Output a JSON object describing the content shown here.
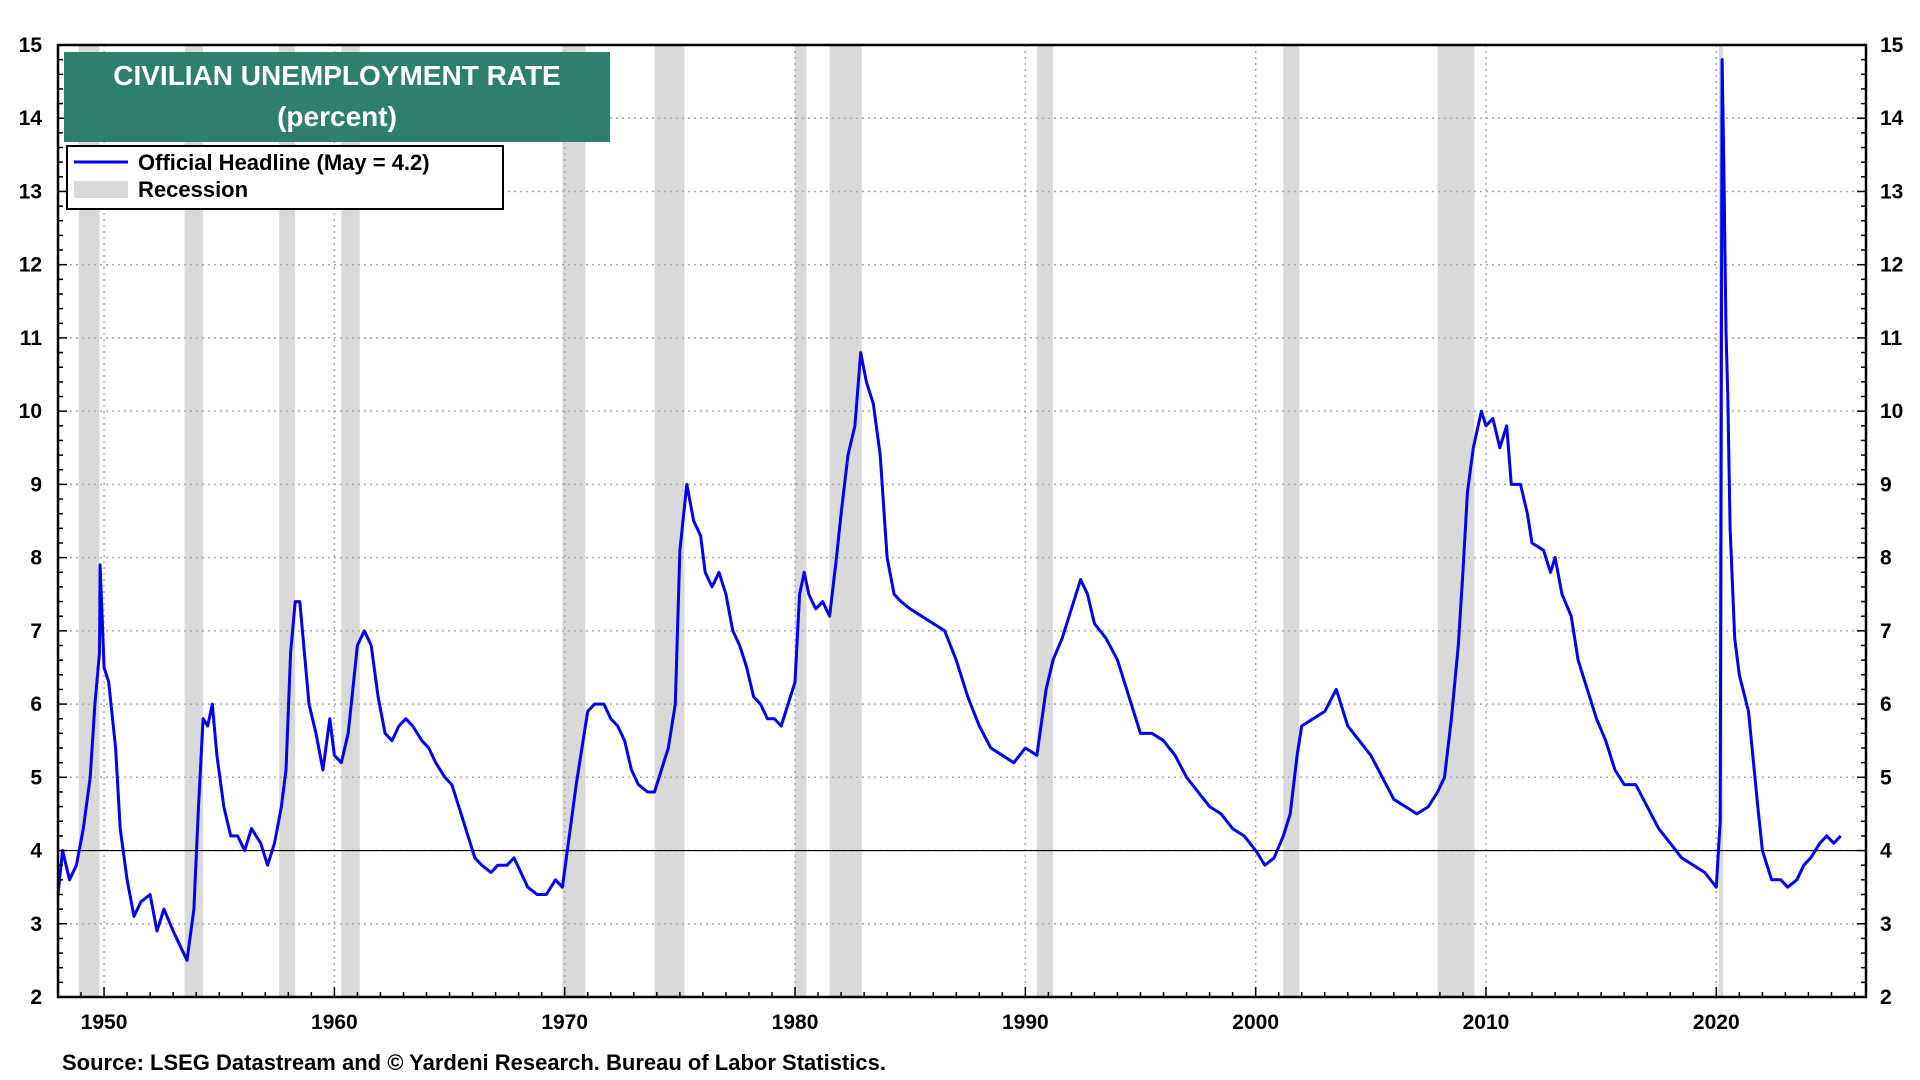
{
  "chart_data": {
    "type": "line",
    "title": "CIVILIAN UNEMPLOYMENT RATE",
    "subtitle": "(percent)",
    "source": "Source: LSEG Datastream and © Yardeni Research. Bureau of Labor Statistics.",
    "xlim": [
      1948.0,
      2026.5
    ],
    "ylim": [
      2,
      15
    ],
    "x_ticks": [
      1950,
      1960,
      1970,
      1980,
      1990,
      2000,
      2010,
      2020
    ],
    "y_ticks": [
      2,
      3,
      4,
      5,
      6,
      7,
      8,
      9,
      10,
      11,
      12,
      13,
      14,
      15
    ],
    "reference_line": 4,
    "grid": true,
    "legend_position": "top-left",
    "legend": [
      {
        "label": "Official Headline (May = 4.2)",
        "kind": "line",
        "color": "#0000ee"
      },
      {
        "label": "Recession",
        "kind": "band",
        "color": "#d9d9d9"
      }
    ],
    "recessions": [
      [
        1948.9,
        1949.8
      ],
      [
        1953.5,
        1954.3
      ],
      [
        1957.6,
        1958.3
      ],
      [
        1960.3,
        1961.1
      ],
      [
        1969.9,
        1970.9
      ],
      [
        1973.9,
        1975.2
      ],
      [
        1980.0,
        1980.5
      ],
      [
        1981.5,
        1982.9
      ],
      [
        1990.5,
        1991.2
      ],
      [
        2001.2,
        2001.9
      ],
      [
        2007.9,
        2009.5
      ],
      [
        2020.1,
        2020.3
      ]
    ],
    "series": [
      {
        "name": "Official Headline (May = 4.2)",
        "color": "#0000ee",
        "points": [
          [
            1948.0,
            3.4
          ],
          [
            1948.2,
            4.0
          ],
          [
            1948.5,
            3.6
          ],
          [
            1948.8,
            3.8
          ],
          [
            1949.1,
            4.3
          ],
          [
            1949.4,
            5.0
          ],
          [
            1949.6,
            6.0
          ],
          [
            1949.8,
            6.7
          ],
          [
            1949.83,
            7.9
          ],
          [
            1950.0,
            6.5
          ],
          [
            1950.2,
            6.3
          ],
          [
            1950.5,
            5.4
          ],
          [
            1950.7,
            4.3
          ],
          [
            1951.0,
            3.6
          ],
          [
            1951.3,
            3.1
          ],
          [
            1951.6,
            3.3
          ],
          [
            1952.0,
            3.4
          ],
          [
            1952.3,
            2.9
          ],
          [
            1952.6,
            3.2
          ],
          [
            1953.0,
            2.9
          ],
          [
            1953.3,
            2.7
          ],
          [
            1953.6,
            2.5
          ],
          [
            1953.9,
            3.2
          ],
          [
            1954.1,
            4.6
          ],
          [
            1954.3,
            5.8
          ],
          [
            1954.5,
            5.7
          ],
          [
            1954.7,
            6.0
          ],
          [
            1954.9,
            5.3
          ],
          [
            1955.2,
            4.6
          ],
          [
            1955.5,
            4.2
          ],
          [
            1955.8,
            4.2
          ],
          [
            1956.1,
            4.0
          ],
          [
            1956.4,
            4.3
          ],
          [
            1956.8,
            4.1
          ],
          [
            1957.1,
            3.8
          ],
          [
            1957.4,
            4.1
          ],
          [
            1957.7,
            4.6
          ],
          [
            1957.9,
            5.1
          ],
          [
            1958.1,
            6.7
          ],
          [
            1958.3,
            7.4
          ],
          [
            1958.5,
            7.4
          ],
          [
            1958.7,
            6.7
          ],
          [
            1958.9,
            6.0
          ],
          [
            1959.2,
            5.6
          ],
          [
            1959.5,
            5.1
          ],
          [
            1959.8,
            5.8
          ],
          [
            1960.0,
            5.3
          ],
          [
            1960.3,
            5.2
          ],
          [
            1960.6,
            5.6
          ],
          [
            1960.8,
            6.2
          ],
          [
            1961.0,
            6.8
          ],
          [
            1961.3,
            7.0
          ],
          [
            1961.6,
            6.8
          ],
          [
            1961.9,
            6.1
          ],
          [
            1962.2,
            5.6
          ],
          [
            1962.5,
            5.5
          ],
          [
            1962.8,
            5.7
          ],
          [
            1963.1,
            5.8
          ],
          [
            1963.4,
            5.7
          ],
          [
            1963.8,
            5.5
          ],
          [
            1964.1,
            5.4
          ],
          [
            1964.4,
            5.2
          ],
          [
            1964.8,
            5.0
          ],
          [
            1965.1,
            4.9
          ],
          [
            1965.4,
            4.6
          ],
          [
            1965.8,
            4.2
          ],
          [
            1966.1,
            3.9
          ],
          [
            1966.4,
            3.8
          ],
          [
            1966.8,
            3.7
          ],
          [
            1967.1,
            3.8
          ],
          [
            1967.5,
            3.8
          ],
          [
            1967.8,
            3.9
          ],
          [
            1968.1,
            3.7
          ],
          [
            1968.4,
            3.5
          ],
          [
            1968.8,
            3.4
          ],
          [
            1969.2,
            3.4
          ],
          [
            1969.6,
            3.6
          ],
          [
            1969.9,
            3.5
          ],
          [
            1970.2,
            4.2
          ],
          [
            1970.5,
            4.9
          ],
          [
            1970.8,
            5.5
          ],
          [
            1971.0,
            5.9
          ],
          [
            1971.3,
            6.0
          ],
          [
            1971.7,
            6.0
          ],
          [
            1972.0,
            5.8
          ],
          [
            1972.3,
            5.7
          ],
          [
            1972.6,
            5.5
          ],
          [
            1972.9,
            5.1
          ],
          [
            1973.2,
            4.9
          ],
          [
            1973.6,
            4.8
          ],
          [
            1973.9,
            4.8
          ],
          [
            1974.2,
            5.1
          ],
          [
            1974.5,
            5.4
          ],
          [
            1974.8,
            6.0
          ],
          [
            1975.0,
            8.1
          ],
          [
            1975.3,
            9.0
          ],
          [
            1975.6,
            8.5
          ],
          [
            1975.9,
            8.3
          ],
          [
            1976.1,
            7.8
          ],
          [
            1976.4,
            7.6
          ],
          [
            1976.7,
            7.8
          ],
          [
            1977.0,
            7.5
          ],
          [
            1977.3,
            7.0
          ],
          [
            1977.6,
            6.8
          ],
          [
            1977.9,
            6.5
          ],
          [
            1978.2,
            6.1
          ],
          [
            1978.5,
            6.0
          ],
          [
            1978.8,
            5.8
          ],
          [
            1979.1,
            5.8
          ],
          [
            1979.4,
            5.7
          ],
          [
            1979.7,
            6.0
          ],
          [
            1980.0,
            6.3
          ],
          [
            1980.2,
            7.5
          ],
          [
            1980.4,
            7.8
          ],
          [
            1980.6,
            7.5
          ],
          [
            1980.9,
            7.3
          ],
          [
            1981.2,
            7.4
          ],
          [
            1981.5,
            7.2
          ],
          [
            1981.8,
            8.0
          ],
          [
            1982.0,
            8.6
          ],
          [
            1982.3,
            9.4
          ],
          [
            1982.6,
            9.8
          ],
          [
            1982.85,
            10.8
          ],
          [
            1983.1,
            10.4
          ],
          [
            1983.4,
            10.1
          ],
          [
            1983.7,
            9.4
          ],
          [
            1984.0,
            8.0
          ],
          [
            1984.3,
            7.5
          ],
          [
            1984.6,
            7.4
          ],
          [
            1985.0,
            7.3
          ],
          [
            1985.5,
            7.2
          ],
          [
            1986.0,
            7.1
          ],
          [
            1986.5,
            7.0
          ],
          [
            1987.0,
            6.6
          ],
          [
            1987.5,
            6.1
          ],
          [
            1988.0,
            5.7
          ],
          [
            1988.5,
            5.4
          ],
          [
            1989.0,
            5.3
          ],
          [
            1989.5,
            5.2
          ],
          [
            1990.0,
            5.4
          ],
          [
            1990.5,
            5.3
          ],
          [
            1990.9,
            6.2
          ],
          [
            1991.2,
            6.6
          ],
          [
            1991.6,
            6.9
          ],
          [
            1992.0,
            7.3
          ],
          [
            1992.4,
            7.7
          ],
          [
            1992.7,
            7.5
          ],
          [
            1993.0,
            7.1
          ],
          [
            1993.5,
            6.9
          ],
          [
            1994.0,
            6.6
          ],
          [
            1994.5,
            6.1
          ],
          [
            1995.0,
            5.6
          ],
          [
            1995.5,
            5.6
          ],
          [
            1996.0,
            5.5
          ],
          [
            1996.5,
            5.3
          ],
          [
            1997.0,
            5.0
          ],
          [
            1997.5,
            4.8
          ],
          [
            1998.0,
            4.6
          ],
          [
            1998.5,
            4.5
          ],
          [
            1999.0,
            4.3
          ],
          [
            1999.5,
            4.2
          ],
          [
            2000.0,
            4.0
          ],
          [
            2000.4,
            3.8
          ],
          [
            2000.8,
            3.9
          ],
          [
            2001.2,
            4.2
          ],
          [
            2001.5,
            4.5
          ],
          [
            2001.8,
            5.3
          ],
          [
            2002.0,
            5.7
          ],
          [
            2002.5,
            5.8
          ],
          [
            2003.0,
            5.9
          ],
          [
            2003.5,
            6.2
          ],
          [
            2004.0,
            5.7
          ],
          [
            2004.5,
            5.5
          ],
          [
            2005.0,
            5.3
          ],
          [
            2005.5,
            5.0
          ],
          [
            2006.0,
            4.7
          ],
          [
            2006.5,
            4.6
          ],
          [
            2007.0,
            4.5
          ],
          [
            2007.5,
            4.6
          ],
          [
            2007.9,
            4.8
          ],
          [
            2008.2,
            5.0
          ],
          [
            2008.5,
            5.8
          ],
          [
            2008.8,
            6.8
          ],
          [
            2009.0,
            7.8
          ],
          [
            2009.2,
            8.9
          ],
          [
            2009.45,
            9.5
          ],
          [
            2009.8,
            10.0
          ],
          [
            2010.0,
            9.8
          ],
          [
            2010.3,
            9.9
          ],
          [
            2010.6,
            9.5
          ],
          [
            2010.9,
            9.8
          ],
          [
            2011.1,
            9.0
          ],
          [
            2011.5,
            9.0
          ],
          [
            2011.8,
            8.6
          ],
          [
            2012.0,
            8.2
          ],
          [
            2012.5,
            8.1
          ],
          [
            2012.8,
            7.8
          ],
          [
            2013.0,
            8.0
          ],
          [
            2013.3,
            7.5
          ],
          [
            2013.7,
            7.2
          ],
          [
            2014.0,
            6.6
          ],
          [
            2014.4,
            6.2
          ],
          [
            2014.8,
            5.8
          ],
          [
            2015.2,
            5.5
          ],
          [
            2015.6,
            5.1
          ],
          [
            2016.0,
            4.9
          ],
          [
            2016.5,
            4.9
          ],
          [
            2017.0,
            4.6
          ],
          [
            2017.5,
            4.3
          ],
          [
            2018.0,
            4.1
          ],
          [
            2018.5,
            3.9
          ],
          [
            2019.0,
            3.8
          ],
          [
            2019.5,
            3.7
          ],
          [
            2020.0,
            3.5
          ],
          [
            2020.17,
            4.4
          ],
          [
            2020.25,
            14.8
          ],
          [
            2020.33,
            13.3
          ],
          [
            2020.42,
            11.1
          ],
          [
            2020.5,
            10.2
          ],
          [
            2020.6,
            8.4
          ],
          [
            2020.8,
            6.9
          ],
          [
            2021.0,
            6.4
          ],
          [
            2021.4,
            5.9
          ],
          [
            2021.8,
            4.6
          ],
          [
            2022.0,
            4.0
          ],
          [
            2022.4,
            3.6
          ],
          [
            2022.8,
            3.6
          ],
          [
            2023.1,
            3.5
          ],
          [
            2023.5,
            3.6
          ],
          [
            2023.8,
            3.8
          ],
          [
            2024.1,
            3.9
          ],
          [
            2024.5,
            4.1
          ],
          [
            2024.8,
            4.2
          ],
          [
            2025.1,
            4.1
          ],
          [
            2025.4,
            4.2
          ]
        ]
      }
    ]
  }
}
